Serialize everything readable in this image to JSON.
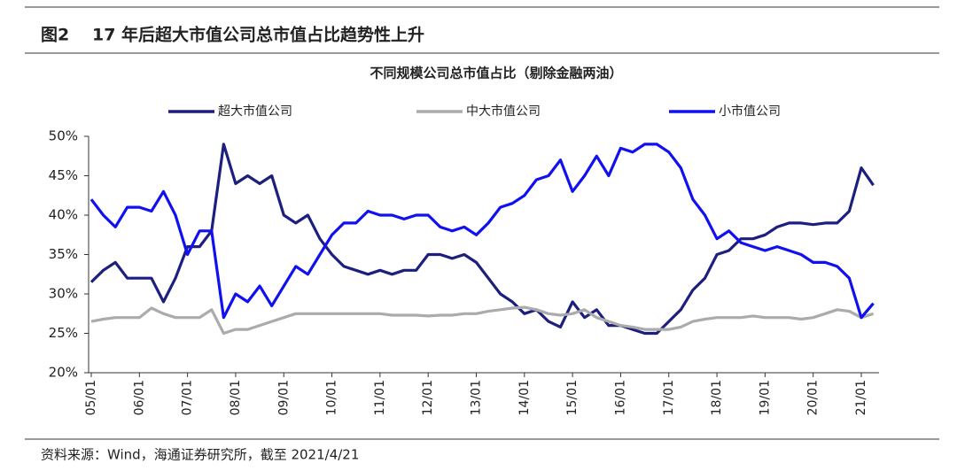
{
  "chart_data": {
    "type": "line",
    "figure_label": "图2",
    "title": "17 年后超大市值公司总市值占比趋势性上升",
    "subtitle": "不同规模公司总市值占比（剔除金融两油）",
    "source": "资料来源：Wind，海通证券研究所，截至 2021/4/21",
    "categories": [
      "05/01",
      "05/04",
      "05/07",
      "05/10",
      "06/01",
      "06/04",
      "06/07",
      "06/10",
      "07/01",
      "07/04",
      "07/07",
      "07/10",
      "08/01",
      "08/04",
      "08/07",
      "08/10",
      "09/01",
      "09/04",
      "09/07",
      "09/10",
      "10/01",
      "10/04",
      "10/07",
      "10/10",
      "11/01",
      "11/04",
      "11/07",
      "11/10",
      "12/01",
      "12/04",
      "12/07",
      "12/10",
      "13/01",
      "13/04",
      "13/07",
      "13/10",
      "14/01",
      "14/04",
      "14/07",
      "14/10",
      "15/01",
      "15/04",
      "15/07",
      "15/10",
      "16/01",
      "16/04",
      "16/07",
      "16/10",
      "17/01",
      "17/04",
      "17/07",
      "17/10",
      "18/01",
      "18/04",
      "18/07",
      "18/10",
      "19/01",
      "19/04",
      "19/07",
      "19/10",
      "20/01",
      "20/04",
      "20/07",
      "20/10",
      "21/01",
      "21/04"
    ],
    "xticks": [
      "05/01",
      "06/01",
      "07/01",
      "08/01",
      "09/01",
      "10/01",
      "11/01",
      "12/01",
      "13/01",
      "14/01",
      "15/01",
      "16/01",
      "17/01",
      "18/01",
      "19/01",
      "20/01",
      "21/01"
    ],
    "series": [
      {
        "name": "超大市值公司",
        "color": "#1c1f7e",
        "values": [
          31.5,
          33,
          34,
          32,
          32,
          32,
          29,
          32,
          36,
          36,
          38,
          49,
          44,
          45,
          44,
          45,
          40,
          39,
          40,
          37,
          35,
          33.5,
          33,
          32.5,
          33,
          32.5,
          33,
          33,
          35,
          35,
          34.5,
          35,
          34,
          32,
          30,
          29,
          27.5,
          28,
          26.5,
          25.8,
          29,
          27,
          28,
          26,
          26,
          25.5,
          25,
          25,
          26.5,
          28,
          30.5,
          32,
          35,
          35.5,
          37,
          37,
          37.5,
          38.5,
          39,
          39,
          38.8,
          39,
          39,
          40.5,
          46,
          43.8
        ]
      },
      {
        "name": "中大市值公司",
        "color": "#ababab",
        "values": [
          26.5,
          26.8,
          27,
          27,
          27,
          28.2,
          27.5,
          27,
          27,
          27,
          28,
          25,
          25.5,
          25.5,
          26,
          26.5,
          27,
          27.5,
          27.5,
          27.5,
          27.5,
          27.5,
          27.5,
          27.5,
          27.5,
          27.3,
          27.3,
          27.3,
          27.2,
          27.3,
          27.3,
          27.5,
          27.5,
          27.8,
          28,
          28.2,
          28.3,
          28,
          27.5,
          27.3,
          27.5,
          28,
          27,
          26.5,
          26,
          25.8,
          25.5,
          25.5,
          25.5,
          25.8,
          26.5,
          26.8,
          27,
          27,
          27,
          27.2,
          27,
          27,
          27,
          26.8,
          27,
          27.5,
          28,
          27.8,
          27,
          27.5
        ]
      },
      {
        "name": "小市值公司",
        "color": "#1010f0",
        "values": [
          42,
          40,
          38.5,
          41,
          41,
          40.5,
          43,
          40,
          35,
          38,
          38,
          27,
          30,
          29,
          31,
          28.5,
          31,
          33.5,
          32.5,
          35,
          37.5,
          39,
          39,
          40.5,
          40,
          40,
          39.5,
          40,
          40,
          38.5,
          38,
          38.5,
          37.5,
          39,
          41,
          41.5,
          42.5,
          44.5,
          45,
          47,
          43,
          45,
          47.5,
          45,
          48.5,
          48,
          49,
          49,
          48,
          46,
          42,
          40,
          37,
          38,
          36.5,
          36,
          35.5,
          36,
          35.5,
          35,
          34,
          34,
          33.5,
          32,
          27,
          28.8
        ]
      }
    ],
    "ylim": [
      20,
      50
    ],
    "yticks": [
      {
        "value": 20,
        "label": "20%"
      },
      {
        "value": 25,
        "label": "25%"
      },
      {
        "value": 30,
        "label": "30%"
      },
      {
        "value": 35,
        "label": "35%"
      },
      {
        "value": 40,
        "label": "40%"
      },
      {
        "value": 45,
        "label": "45%"
      },
      {
        "value": 50,
        "label": "50%"
      }
    ],
    "grid": false,
    "legend": "top"
  }
}
